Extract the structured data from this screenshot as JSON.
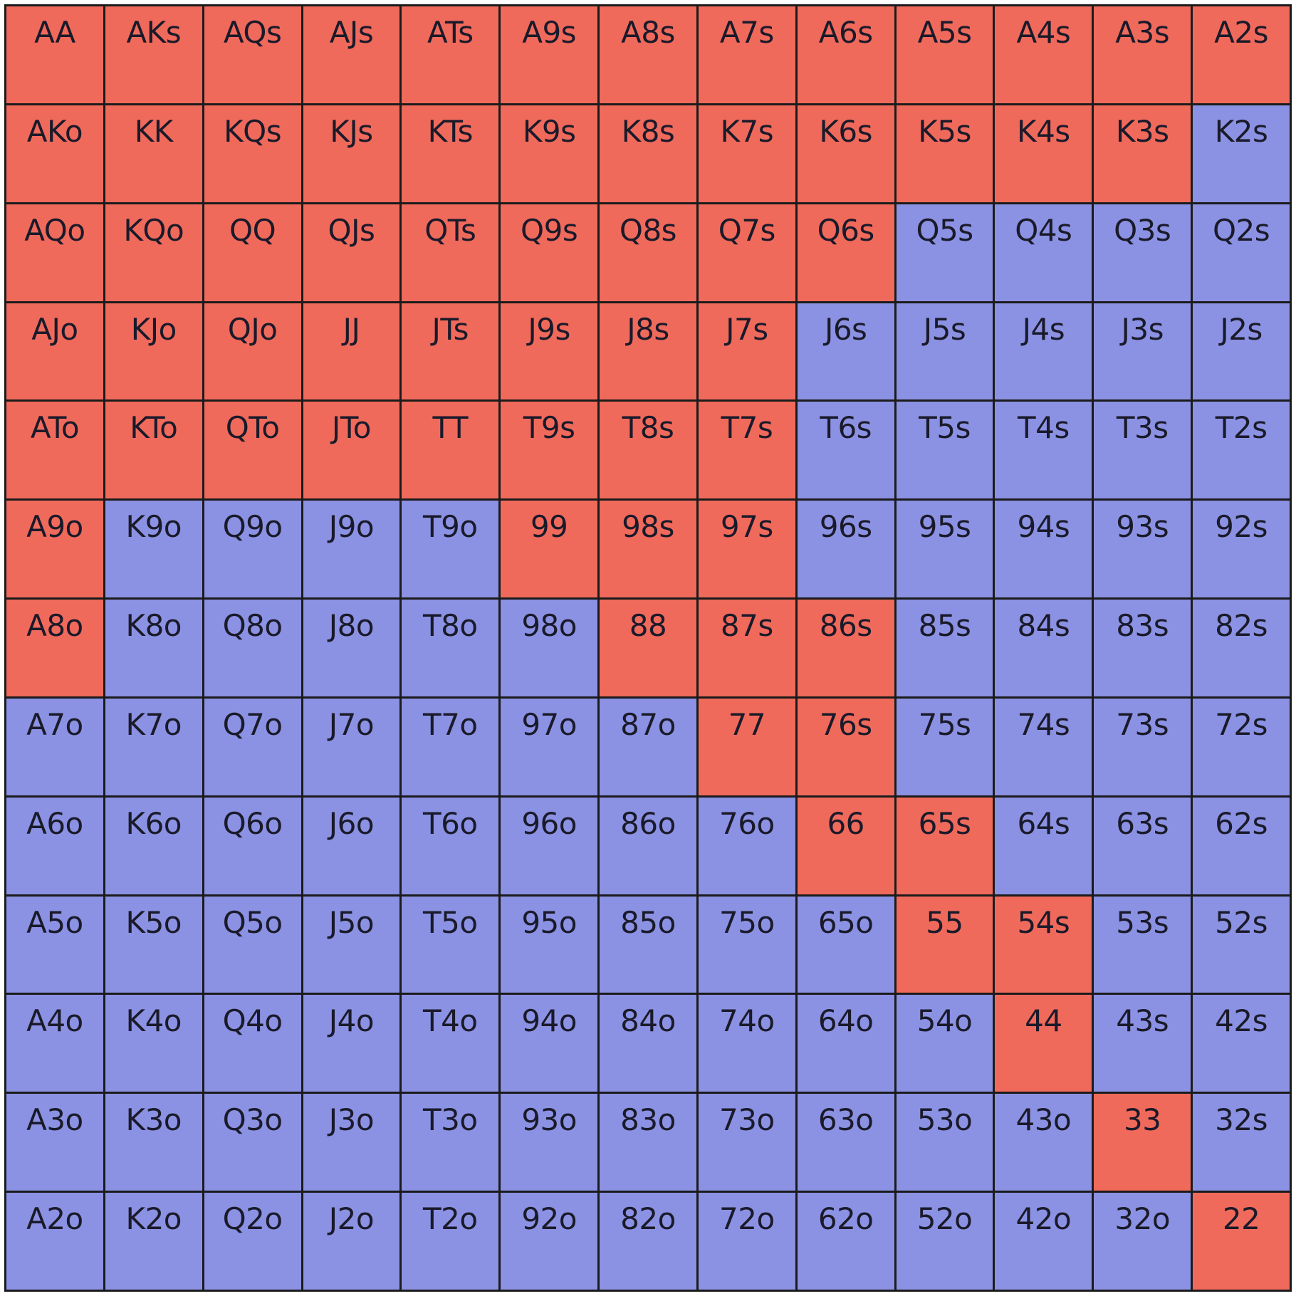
{
  "colors": {
    "raise": "#f06a5c",
    "fold": "#8b92e3",
    "border": "#1b1b1b"
  },
  "rows": [
    {
      "cells": [
        {
          "label": "AA",
          "action": "raise"
        },
        {
          "label": "AKs",
          "action": "raise"
        },
        {
          "label": "AQs",
          "action": "raise"
        },
        {
          "label": "AJs",
          "action": "raise"
        },
        {
          "label": "ATs",
          "action": "raise"
        },
        {
          "label": "A9s",
          "action": "raise"
        },
        {
          "label": "A8s",
          "action": "raise"
        },
        {
          "label": "A7s",
          "action": "raise"
        },
        {
          "label": "A6s",
          "action": "raise"
        },
        {
          "label": "A5s",
          "action": "raise"
        },
        {
          "label": "A4s",
          "action": "raise"
        },
        {
          "label": "A3s",
          "action": "raise"
        },
        {
          "label": "A2s",
          "action": "raise"
        }
      ]
    },
    {
      "cells": [
        {
          "label": "AKo",
          "action": "raise"
        },
        {
          "label": "KK",
          "action": "raise"
        },
        {
          "label": "KQs",
          "action": "raise"
        },
        {
          "label": "KJs",
          "action": "raise"
        },
        {
          "label": "KTs",
          "action": "raise"
        },
        {
          "label": "K9s",
          "action": "raise"
        },
        {
          "label": "K8s",
          "action": "raise"
        },
        {
          "label": "K7s",
          "action": "raise"
        },
        {
          "label": "K6s",
          "action": "raise"
        },
        {
          "label": "K5s",
          "action": "raise"
        },
        {
          "label": "K4s",
          "action": "raise"
        },
        {
          "label": "K3s",
          "action": "raise"
        },
        {
          "label": "K2s",
          "action": "fold"
        }
      ]
    },
    {
      "cells": [
        {
          "label": "AQo",
          "action": "raise"
        },
        {
          "label": "KQo",
          "action": "raise"
        },
        {
          "label": "QQ",
          "action": "raise"
        },
        {
          "label": "QJs",
          "action": "raise"
        },
        {
          "label": "QTs",
          "action": "raise"
        },
        {
          "label": "Q9s",
          "action": "raise"
        },
        {
          "label": "Q8s",
          "action": "raise"
        },
        {
          "label": "Q7s",
          "action": "raise"
        },
        {
          "label": "Q6s",
          "action": "raise"
        },
        {
          "label": "Q5s",
          "action": "fold"
        },
        {
          "label": "Q4s",
          "action": "fold"
        },
        {
          "label": "Q3s",
          "action": "fold"
        },
        {
          "label": "Q2s",
          "action": "fold"
        }
      ]
    },
    {
      "cells": [
        {
          "label": "AJo",
          "action": "raise"
        },
        {
          "label": "KJo",
          "action": "raise"
        },
        {
          "label": "QJo",
          "action": "raise"
        },
        {
          "label": "JJ",
          "action": "raise"
        },
        {
          "label": "JTs",
          "action": "raise"
        },
        {
          "label": "J9s",
          "action": "raise"
        },
        {
          "label": "J8s",
          "action": "raise"
        },
        {
          "label": "J7s",
          "action": "raise"
        },
        {
          "label": "J6s",
          "action": "fold"
        },
        {
          "label": "J5s",
          "action": "fold"
        },
        {
          "label": "J4s",
          "action": "fold"
        },
        {
          "label": "J3s",
          "action": "fold"
        },
        {
          "label": "J2s",
          "action": "fold"
        }
      ]
    },
    {
      "cells": [
        {
          "label": "ATo",
          "action": "raise"
        },
        {
          "label": "KTo",
          "action": "raise"
        },
        {
          "label": "QTo",
          "action": "raise"
        },
        {
          "label": "JTo",
          "action": "raise"
        },
        {
          "label": "TT",
          "action": "raise"
        },
        {
          "label": "T9s",
          "action": "raise"
        },
        {
          "label": "T8s",
          "action": "raise"
        },
        {
          "label": "T7s",
          "action": "raise"
        },
        {
          "label": "T6s",
          "action": "fold"
        },
        {
          "label": "T5s",
          "action": "fold"
        },
        {
          "label": "T4s",
          "action": "fold"
        },
        {
          "label": "T3s",
          "action": "fold"
        },
        {
          "label": "T2s",
          "action": "fold"
        }
      ]
    },
    {
      "cells": [
        {
          "label": "A9o",
          "action": "raise"
        },
        {
          "label": "K9o",
          "action": "fold"
        },
        {
          "label": "Q9o",
          "action": "fold"
        },
        {
          "label": "J9o",
          "action": "fold"
        },
        {
          "label": "T9o",
          "action": "fold"
        },
        {
          "label": "99",
          "action": "raise"
        },
        {
          "label": "98s",
          "action": "raise"
        },
        {
          "label": "97s",
          "action": "raise"
        },
        {
          "label": "96s",
          "action": "fold"
        },
        {
          "label": "95s",
          "action": "fold"
        },
        {
          "label": "94s",
          "action": "fold"
        },
        {
          "label": "93s",
          "action": "fold"
        },
        {
          "label": "92s",
          "action": "fold"
        }
      ]
    },
    {
      "cells": [
        {
          "label": "A8o",
          "action": "raise"
        },
        {
          "label": "K8o",
          "action": "fold"
        },
        {
          "label": "Q8o",
          "action": "fold"
        },
        {
          "label": "J8o",
          "action": "fold"
        },
        {
          "label": "T8o",
          "action": "fold"
        },
        {
          "label": "98o",
          "action": "fold"
        },
        {
          "label": "88",
          "action": "raise"
        },
        {
          "label": "87s",
          "action": "raise"
        },
        {
          "label": "86s",
          "action": "raise"
        },
        {
          "label": "85s",
          "action": "fold"
        },
        {
          "label": "84s",
          "action": "fold"
        },
        {
          "label": "83s",
          "action": "fold"
        },
        {
          "label": "82s",
          "action": "fold"
        }
      ]
    },
    {
      "cells": [
        {
          "label": "A7o",
          "action": "fold"
        },
        {
          "label": "K7o",
          "action": "fold"
        },
        {
          "label": "Q7o",
          "action": "fold"
        },
        {
          "label": "J7o",
          "action": "fold"
        },
        {
          "label": "T7o",
          "action": "fold"
        },
        {
          "label": "97o",
          "action": "fold"
        },
        {
          "label": "87o",
          "action": "fold"
        },
        {
          "label": "77",
          "action": "raise"
        },
        {
          "label": "76s",
          "action": "raise"
        },
        {
          "label": "75s",
          "action": "fold"
        },
        {
          "label": "74s",
          "action": "fold"
        },
        {
          "label": "73s",
          "action": "fold"
        },
        {
          "label": "72s",
          "action": "fold"
        }
      ]
    },
    {
      "cells": [
        {
          "label": "A6o",
          "action": "fold"
        },
        {
          "label": "K6o",
          "action": "fold"
        },
        {
          "label": "Q6o",
          "action": "fold"
        },
        {
          "label": "J6o",
          "action": "fold"
        },
        {
          "label": "T6o",
          "action": "fold"
        },
        {
          "label": "96o",
          "action": "fold"
        },
        {
          "label": "86o",
          "action": "fold"
        },
        {
          "label": "76o",
          "action": "fold"
        },
        {
          "label": "66",
          "action": "raise"
        },
        {
          "label": "65s",
          "action": "raise"
        },
        {
          "label": "64s",
          "action": "fold"
        },
        {
          "label": "63s",
          "action": "fold"
        },
        {
          "label": "62s",
          "action": "fold"
        }
      ]
    },
    {
      "cells": [
        {
          "label": "A5o",
          "action": "fold"
        },
        {
          "label": "K5o",
          "action": "fold"
        },
        {
          "label": "Q5o",
          "action": "fold"
        },
        {
          "label": "J5o",
          "action": "fold"
        },
        {
          "label": "T5o",
          "action": "fold"
        },
        {
          "label": "95o",
          "action": "fold"
        },
        {
          "label": "85o",
          "action": "fold"
        },
        {
          "label": "75o",
          "action": "fold"
        },
        {
          "label": "65o",
          "action": "fold"
        },
        {
          "label": "55",
          "action": "raise"
        },
        {
          "label": "54s",
          "action": "raise"
        },
        {
          "label": "53s",
          "action": "fold"
        },
        {
          "label": "52s",
          "action": "fold"
        }
      ]
    },
    {
      "cells": [
        {
          "label": "A4o",
          "action": "fold"
        },
        {
          "label": "K4o",
          "action": "fold"
        },
        {
          "label": "Q4o",
          "action": "fold"
        },
        {
          "label": "J4o",
          "action": "fold"
        },
        {
          "label": "T4o",
          "action": "fold"
        },
        {
          "label": "94o",
          "action": "fold"
        },
        {
          "label": "84o",
          "action": "fold"
        },
        {
          "label": "74o",
          "action": "fold"
        },
        {
          "label": "64o",
          "action": "fold"
        },
        {
          "label": "54o",
          "action": "fold"
        },
        {
          "label": "44",
          "action": "raise"
        },
        {
          "label": "43s",
          "action": "fold"
        },
        {
          "label": "42s",
          "action": "fold"
        }
      ]
    },
    {
      "cells": [
        {
          "label": "A3o",
          "action": "fold"
        },
        {
          "label": "K3o",
          "action": "fold"
        },
        {
          "label": "Q3o",
          "action": "fold"
        },
        {
          "label": "J3o",
          "action": "fold"
        },
        {
          "label": "T3o",
          "action": "fold"
        },
        {
          "label": "93o",
          "action": "fold"
        },
        {
          "label": "83o",
          "action": "fold"
        },
        {
          "label": "73o",
          "action": "fold"
        },
        {
          "label": "63o",
          "action": "fold"
        },
        {
          "label": "53o",
          "action": "fold"
        },
        {
          "label": "43o",
          "action": "fold"
        },
        {
          "label": "33",
          "action": "raise"
        },
        {
          "label": "32s",
          "action": "fold"
        }
      ]
    },
    {
      "cells": [
        {
          "label": "A2o",
          "action": "fold"
        },
        {
          "label": "K2o",
          "action": "fold"
        },
        {
          "label": "Q2o",
          "action": "fold"
        },
        {
          "label": "J2o",
          "action": "fold"
        },
        {
          "label": "T2o",
          "action": "fold"
        },
        {
          "label": "92o",
          "action": "fold"
        },
        {
          "label": "82o",
          "action": "fold"
        },
        {
          "label": "72o",
          "action": "fold"
        },
        {
          "label": "62o",
          "action": "fold"
        },
        {
          "label": "52o",
          "action": "fold"
        },
        {
          "label": "42o",
          "action": "fold"
        },
        {
          "label": "32o",
          "action": "fold"
        },
        {
          "label": "22",
          "action": "raise"
        }
      ]
    }
  ]
}
